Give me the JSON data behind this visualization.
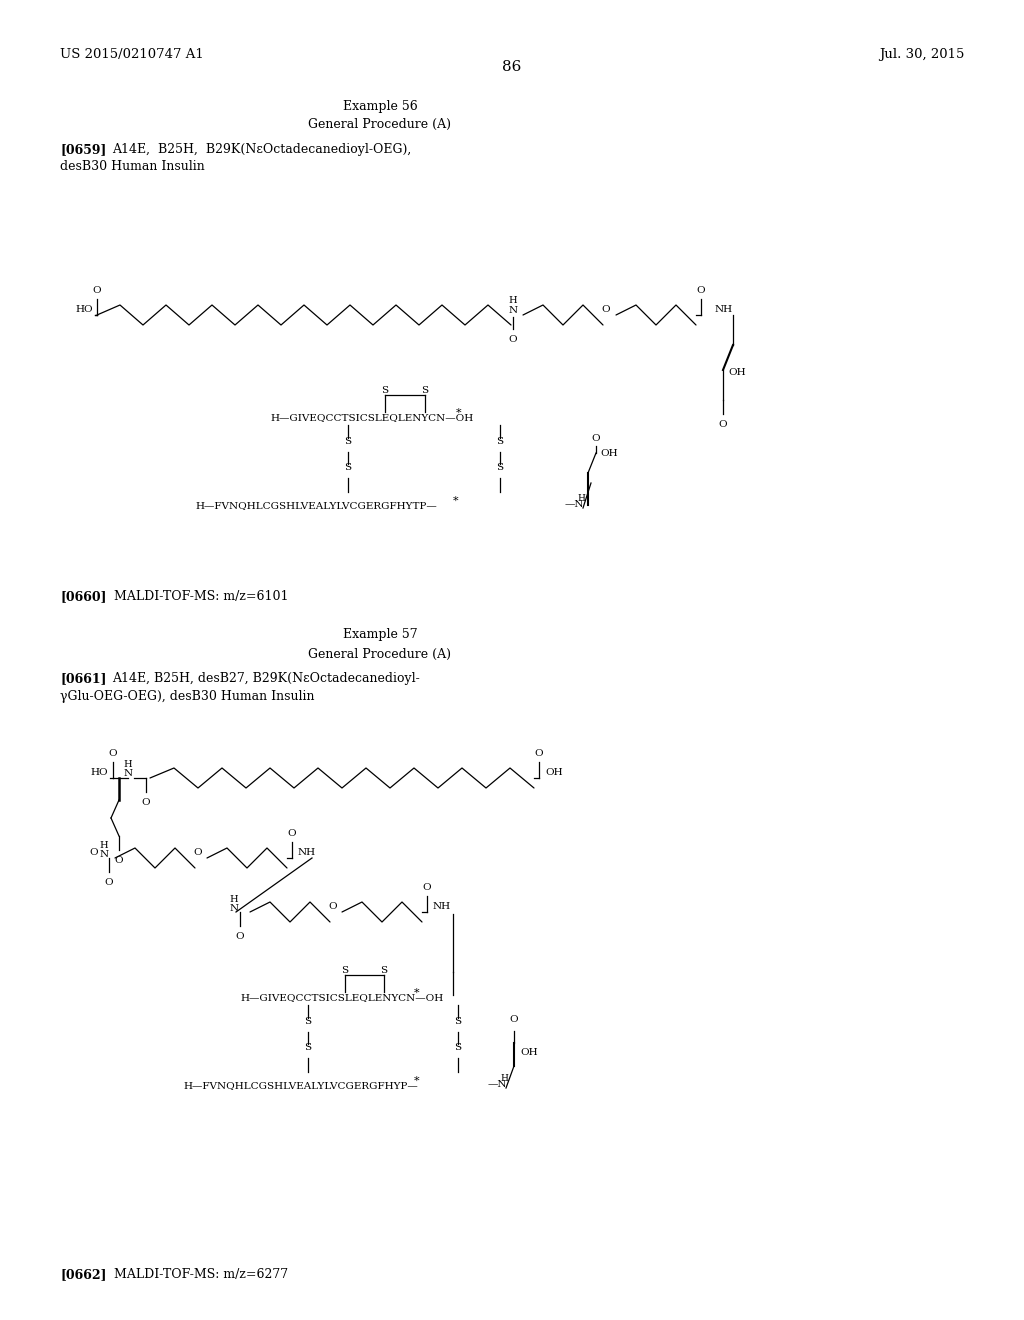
{
  "bg_color": "#ffffff",
  "header_left": "US 2015/0210747 A1",
  "header_right": "Jul. 30, 2015",
  "page_number": "86",
  "example56_title": "Example 56",
  "example56_proc": "General Procedure (A)",
  "example56_ref": "[0659]",
  "example56_desc_line1": "A14E,  B25H,  B29K(NεOctadecanedioyl-OEG),",
  "example56_desc_line2": "desB30 Human Insulin",
  "maldi1_ref": "[0660]",
  "maldi1_text": "MALDI-TOF-MS: m/z=6101",
  "example57_title": "Example 57",
  "example57_proc": "General Procedure (A)",
  "example57_ref": "[0661]",
  "example57_desc_line1": "A14E, B25H, desB27, B29K(NεOctadecanedioyl-",
  "example57_desc_line2": "γGlu-OEG-OEG), desB30 Human Insulin",
  "maldi2_ref": "[0662]",
  "maldi2_text": "MALDI-TOF-MS: m/z=6277",
  "chain_a": "H—GIVEQCCTSICSLEQLENYCN—OH",
  "chain_b": "H—FVNQHLCGSHLVEALYLVCGERGFHYTP—",
  "chain_a2": "H—GIVEQCCTSICSLEQLENYCN—OH",
  "chain_b2": "H—FVNQHLCGSHLVEALYLVCGERGFHYP—"
}
